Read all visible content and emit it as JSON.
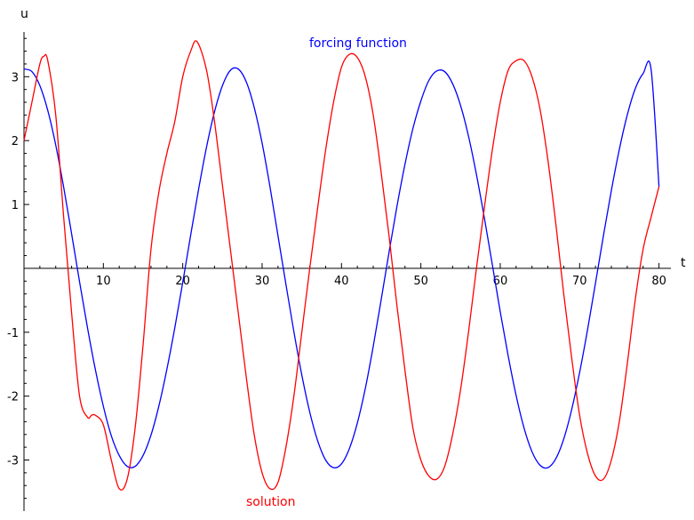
{
  "chart_data": {
    "type": "line",
    "xlabel": "t",
    "ylabel": "u",
    "xlim": [
      0,
      81.5
    ],
    "ylim": [
      -3.8,
      3.7
    ],
    "grid": false,
    "x_ticks": [
      10,
      20,
      30,
      40,
      50,
      60,
      70,
      80
    ],
    "y_ticks": [
      -3,
      -2,
      -1,
      1,
      2,
      3
    ],
    "series": [
      {
        "name": "forcing function",
        "color": "#0000ff",
        "x": [
          0,
          1,
          2,
          3,
          4,
          5,
          6,
          7,
          8,
          9,
          10,
          11,
          12,
          13,
          14,
          15,
          16,
          17,
          18,
          19,
          20,
          21,
          22,
          23,
          24,
          25,
          26,
          27,
          28,
          29,
          30,
          31,
          32,
          33,
          34,
          35,
          36,
          37,
          38,
          39,
          40,
          41,
          42,
          43,
          44,
          45,
          46,
          47,
          48,
          49,
          50,
          51,
          52,
          53,
          54,
          55,
          56,
          57,
          58,
          59,
          60,
          61,
          62,
          63,
          64,
          65,
          66,
          67,
          68,
          69,
          70,
          71,
          72,
          73,
          74,
          75,
          76,
          77,
          78,
          79,
          80
        ],
        "y": [
          3.12,
          3.08,
          2.86,
          2.47,
          1.93,
          1.27,
          0.54,
          -0.21,
          -0.93,
          -1.59,
          -2.16,
          -2.62,
          -2.93,
          -3.1,
          -3.1,
          -2.93,
          -2.61,
          -2.15,
          -1.58,
          -0.93,
          -0.22,
          0.52,
          1.24,
          1.9,
          2.45,
          2.86,
          3.1,
          3.12,
          2.92,
          2.52,
          1.96,
          1.27,
          0.51,
          -0.25,
          -0.99,
          -1.67,
          -2.25,
          -2.7,
          -3.0,
          -3.12,
          -3.06,
          -2.82,
          -2.42,
          -1.88,
          -1.22,
          -0.49,
          0.26,
          0.98,
          1.63,
          2.19,
          2.62,
          2.94,
          3.09,
          3.08,
          2.89,
          2.55,
          2.07,
          1.47,
          0.79,
          0.06,
          -0.68,
          -1.37,
          -1.99,
          -2.5,
          -2.87,
          -3.08,
          -3.12,
          -2.98,
          -2.67,
          -2.21,
          -1.63,
          -0.96,
          -0.23,
          0.51,
          1.22,
          1.86,
          2.4,
          2.81,
          3.05,
          3.12,
          1.28
        ]
      },
      {
        "name": "solution",
        "color": "#ff0000",
        "x": [
          0,
          1,
          2,
          2.5,
          3,
          4,
          5,
          6,
          7,
          8,
          8.5,
          9,
          10,
          11,
          12,
          13,
          14,
          15,
          16,
          17,
          18,
          19,
          20,
          21,
          21.8,
          23,
          24,
          25,
          26,
          27,
          28,
          29,
          30,
          31,
          32,
          33,
          34,
          35,
          36,
          37,
          38,
          39,
          40,
          41,
          42,
          43,
          44,
          45,
          46,
          47,
          48,
          49,
          50,
          51,
          52,
          53,
          54,
          55,
          56,
          57,
          58,
          59,
          60,
          61,
          62,
          63,
          64,
          65,
          66,
          67,
          68,
          69,
          70,
          71,
          72,
          73,
          74,
          75,
          76,
          77,
          78,
          79,
          80
        ],
        "y": [
          2.0,
          2.6,
          3.2,
          3.32,
          3.25,
          2.4,
          0.8,
          -0.7,
          -2.0,
          -2.33,
          -2.3,
          -2.3,
          -2.45,
          -3.0,
          -3.45,
          -3.3,
          -2.5,
          -1.2,
          0.3,
          1.2,
          1.8,
          2.3,
          3.0,
          3.4,
          3.55,
          3.1,
          2.3,
          1.3,
          0.3,
          -0.7,
          -1.7,
          -2.6,
          -3.2,
          -3.45,
          -3.35,
          -2.8,
          -2.0,
          -1.0,
          0.0,
          0.95,
          1.85,
          2.6,
          3.15,
          3.35,
          3.3,
          3.0,
          2.4,
          1.5,
          0.5,
          -0.6,
          -1.6,
          -2.5,
          -3.0,
          -3.25,
          -3.3,
          -3.1,
          -2.6,
          -1.9,
          -1.0,
          0.0,
          0.95,
          1.85,
          2.6,
          3.1,
          3.25,
          3.25,
          3.0,
          2.5,
          1.7,
          0.7,
          -0.4,
          -1.4,
          -2.3,
          -2.9,
          -3.25,
          -3.3,
          -3.0,
          -2.4,
          -1.5,
          -0.5,
          0.3,
          0.8,
          1.28
        ]
      }
    ]
  }
}
